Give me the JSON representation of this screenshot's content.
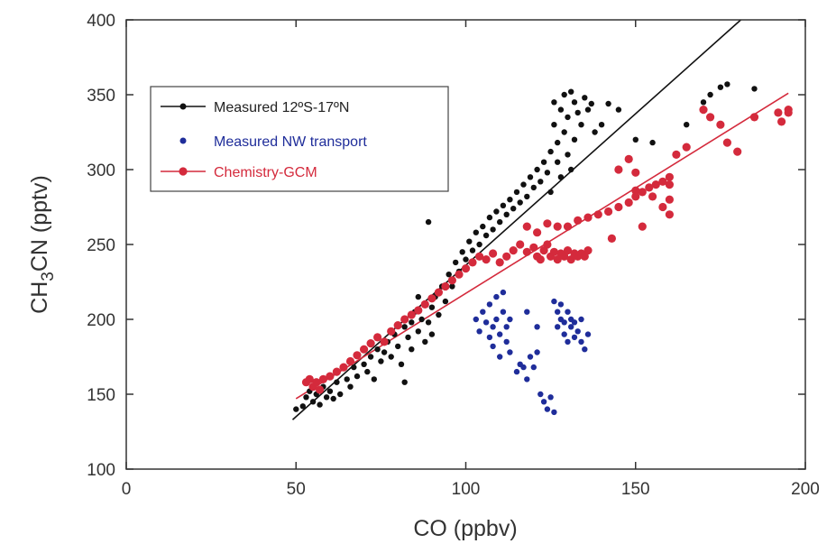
{
  "chart_data": {
    "type": "scatter",
    "title": "",
    "xlabel": "CO (ppbv)",
    "ylabel_parts": [
      "CH",
      "3",
      "CN (pptv)"
    ],
    "xlim": [
      0,
      200
    ],
    "ylim": [
      100,
      400
    ],
    "xticks": [
      0,
      50,
      100,
      150,
      200
    ],
    "yticks": [
      100,
      150,
      200,
      250,
      300,
      350,
      400
    ],
    "grid": false,
    "legend_position": "top-left",
    "series": [
      {
        "name": "Measured 12ºS-17ºN",
        "color": "#111111",
        "marker": "dot",
        "points": [
          [
            50,
            140
          ],
          [
            52,
            142
          ],
          [
            53,
            148
          ],
          [
            54,
            152
          ],
          [
            55,
            145
          ],
          [
            56,
            150
          ],
          [
            57,
            143
          ],
          [
            58,
            155
          ],
          [
            59,
            148
          ],
          [
            60,
            152
          ],
          [
            61,
            147
          ],
          [
            62,
            158
          ],
          [
            63,
            150
          ],
          [
            65,
            160
          ],
          [
            66,
            155
          ],
          [
            67,
            168
          ],
          [
            68,
            162
          ],
          [
            70,
            170
          ],
          [
            71,
            165
          ],
          [
            72,
            175
          ],
          [
            73,
            160
          ],
          [
            74,
            180
          ],
          [
            75,
            172
          ],
          [
            76,
            178
          ],
          [
            77,
            185
          ],
          [
            78,
            175
          ],
          [
            79,
            190
          ],
          [
            80,
            182
          ],
          [
            81,
            170
          ],
          [
            82,
            195
          ],
          [
            82,
            158
          ],
          [
            83,
            188
          ],
          [
            84,
            198
          ],
          [
            84,
            180
          ],
          [
            85,
            205
          ],
          [
            86,
            192
          ],
          [
            86,
            215
          ],
          [
            87,
            200
          ],
          [
            88,
            185
          ],
          [
            88,
            210
          ],
          [
            89,
            198
          ],
          [
            89,
            265
          ],
          [
            90,
            208
          ],
          [
            90,
            190
          ],
          [
            91,
            215
          ],
          [
            92,
            203
          ],
          [
            93,
            222
          ],
          [
            94,
            212
          ],
          [
            95,
            230
          ],
          [
            96,
            222
          ],
          [
            97,
            238
          ],
          [
            98,
            232
          ],
          [
            99,
            245
          ],
          [
            100,
            240
          ],
          [
            101,
            252
          ],
          [
            102,
            246
          ],
          [
            103,
            258
          ],
          [
            104,
            250
          ],
          [
            105,
            262
          ],
          [
            106,
            256
          ],
          [
            107,
            268
          ],
          [
            108,
            260
          ],
          [
            109,
            272
          ],
          [
            110,
            265
          ],
          [
            111,
            276
          ],
          [
            112,
            270
          ],
          [
            113,
            280
          ],
          [
            114,
            274
          ],
          [
            115,
            285
          ],
          [
            116,
            278
          ],
          [
            117,
            290
          ],
          [
            118,
            282
          ],
          [
            119,
            295
          ],
          [
            120,
            288
          ],
          [
            121,
            300
          ],
          [
            122,
            292
          ],
          [
            123,
            305
          ],
          [
            124,
            298
          ],
          [
            125,
            312
          ],
          [
            125,
            285
          ],
          [
            126,
            330
          ],
          [
            126,
            345
          ],
          [
            127,
            318
          ],
          [
            127,
            305
          ],
          [
            128,
            340
          ],
          [
            128,
            295
          ],
          [
            129,
            350
          ],
          [
            129,
            325
          ],
          [
            130,
            335
          ],
          [
            130,
            310
          ],
          [
            131,
            352
          ],
          [
            131,
            300
          ],
          [
            132,
            345
          ],
          [
            132,
            320
          ],
          [
            133,
            338
          ],
          [
            134,
            330
          ],
          [
            135,
            348
          ],
          [
            136,
            340
          ],
          [
            137,
            344
          ],
          [
            138,
            325
          ],
          [
            140,
            330
          ],
          [
            142,
            344
          ],
          [
            145,
            340
          ],
          [
            150,
            320
          ],
          [
            155,
            318
          ],
          [
            165,
            330
          ],
          [
            170,
            345
          ],
          [
            172,
            350
          ],
          [
            175,
            355
          ],
          [
            177,
            357
          ],
          [
            185,
            354
          ]
        ]
      },
      {
        "name": "Measured NW transport",
        "color": "#1f2d9a",
        "marker": "dot",
        "points": [
          [
            103,
            200
          ],
          [
            104,
            192
          ],
          [
            105,
            205
          ],
          [
            106,
            198
          ],
          [
            107,
            188
          ],
          [
            107,
            210
          ],
          [
            108,
            195
          ],
          [
            108,
            182
          ],
          [
            109,
            215
          ],
          [
            109,
            200
          ],
          [
            110,
            190
          ],
          [
            110,
            175
          ],
          [
            111,
            218
          ],
          [
            111,
            205
          ],
          [
            112,
            195
          ],
          [
            112,
            185
          ],
          [
            113,
            178
          ],
          [
            113,
            200
          ],
          [
            115,
            165
          ],
          [
            116,
            170
          ],
          [
            117,
            168
          ],
          [
            118,
            160
          ],
          [
            119,
            175
          ],
          [
            120,
            168
          ],
          [
            121,
            178
          ],
          [
            122,
            150
          ],
          [
            123,
            145
          ],
          [
            124,
            140
          ],
          [
            125,
            148
          ],
          [
            126,
            138
          ],
          [
            126,
            212
          ],
          [
            127,
            205
          ],
          [
            127,
            195
          ],
          [
            128,
            200
          ],
          [
            128,
            210
          ],
          [
            129,
            190
          ],
          [
            129,
            198
          ],
          [
            130,
            205
          ],
          [
            130,
            185
          ],
          [
            131,
            195
          ],
          [
            131,
            200
          ],
          [
            132,
            188
          ],
          [
            132,
            198
          ],
          [
            133,
            192
          ],
          [
            134,
            185
          ],
          [
            134,
            200
          ],
          [
            135,
            180
          ],
          [
            136,
            190
          ],
          [
            121,
            195
          ],
          [
            118,
            205
          ]
        ]
      },
      {
        "name": "Chemistry-GCM",
        "color": "#d42a3c",
        "marker": "dot",
        "points": [
          [
            53,
            158
          ],
          [
            54,
            160
          ],
          [
            55,
            155
          ],
          [
            56,
            158
          ],
          [
            57,
            153
          ],
          [
            58,
            160
          ],
          [
            60,
            162
          ],
          [
            62,
            165
          ],
          [
            64,
            168
          ],
          [
            66,
            172
          ],
          [
            68,
            176
          ],
          [
            70,
            180
          ],
          [
            72,
            184
          ],
          [
            74,
            188
          ],
          [
            76,
            185
          ],
          [
            78,
            192
          ],
          [
            80,
            196
          ],
          [
            82,
            200
          ],
          [
            84,
            203
          ],
          [
            86,
            206
          ],
          [
            88,
            210
          ],
          [
            90,
            214
          ],
          [
            92,
            218
          ],
          [
            94,
            222
          ],
          [
            96,
            226
          ],
          [
            98,
            230
          ],
          [
            100,
            234
          ],
          [
            102,
            238
          ],
          [
            104,
            242
          ],
          [
            106,
            240
          ],
          [
            108,
            244
          ],
          [
            110,
            238
          ],
          [
            112,
            242
          ],
          [
            114,
            246
          ],
          [
            116,
            250
          ],
          [
            118,
            245
          ],
          [
            120,
            248
          ],
          [
            121,
            242
          ],
          [
            122,
            240
          ],
          [
            123,
            246
          ],
          [
            124,
            250
          ],
          [
            125,
            242
          ],
          [
            126,
            245
          ],
          [
            127,
            240
          ],
          [
            128,
            244
          ],
          [
            129,
            242
          ],
          [
            130,
            246
          ],
          [
            131,
            240
          ],
          [
            132,
            244
          ],
          [
            133,
            242
          ],
          [
            134,
            244
          ],
          [
            135,
            242
          ],
          [
            136,
            246
          ],
          [
            118,
            262
          ],
          [
            121,
            258
          ],
          [
            124,
            264
          ],
          [
            127,
            262
          ],
          [
            130,
            262
          ],
          [
            133,
            266
          ],
          [
            136,
            268
          ],
          [
            139,
            270
          ],
          [
            142,
            272
          ],
          [
            145,
            275
          ],
          [
            148,
            278
          ],
          [
            150,
            282
          ],
          [
            152,
            285
          ],
          [
            154,
            288
          ],
          [
            156,
            290
          ],
          [
            158,
            292
          ],
          [
            160,
            295
          ],
          [
            143,
            254
          ],
          [
            150,
            286
          ],
          [
            152,
            262
          ],
          [
            155,
            282
          ],
          [
            158,
            275
          ],
          [
            160,
            270
          ],
          [
            160,
            280
          ],
          [
            160,
            290
          ],
          [
            162,
            310
          ],
          [
            165,
            315
          ],
          [
            170,
            340
          ],
          [
            172,
            335
          ],
          [
            175,
            330
          ],
          [
            177,
            318
          ],
          [
            180,
            312
          ],
          [
            185,
            335
          ],
          [
            192,
            338
          ],
          [
            193,
            332
          ],
          [
            195,
            338
          ],
          [
            195,
            340
          ],
          [
            148,
            307
          ],
          [
            150,
            298
          ],
          [
            145,
            300
          ]
        ]
      }
    ],
    "fit_lines": [
      {
        "series": "Measured 12ºS-17ºN",
        "color": "#111111",
        "x": [
          49,
          181
        ],
        "y": [
          133,
          400
        ]
      },
      {
        "series": "Chemistry-GCM",
        "color": "#d42a3c",
        "x": [
          50,
          195
        ],
        "y": [
          147,
          351
        ]
      }
    ]
  }
}
